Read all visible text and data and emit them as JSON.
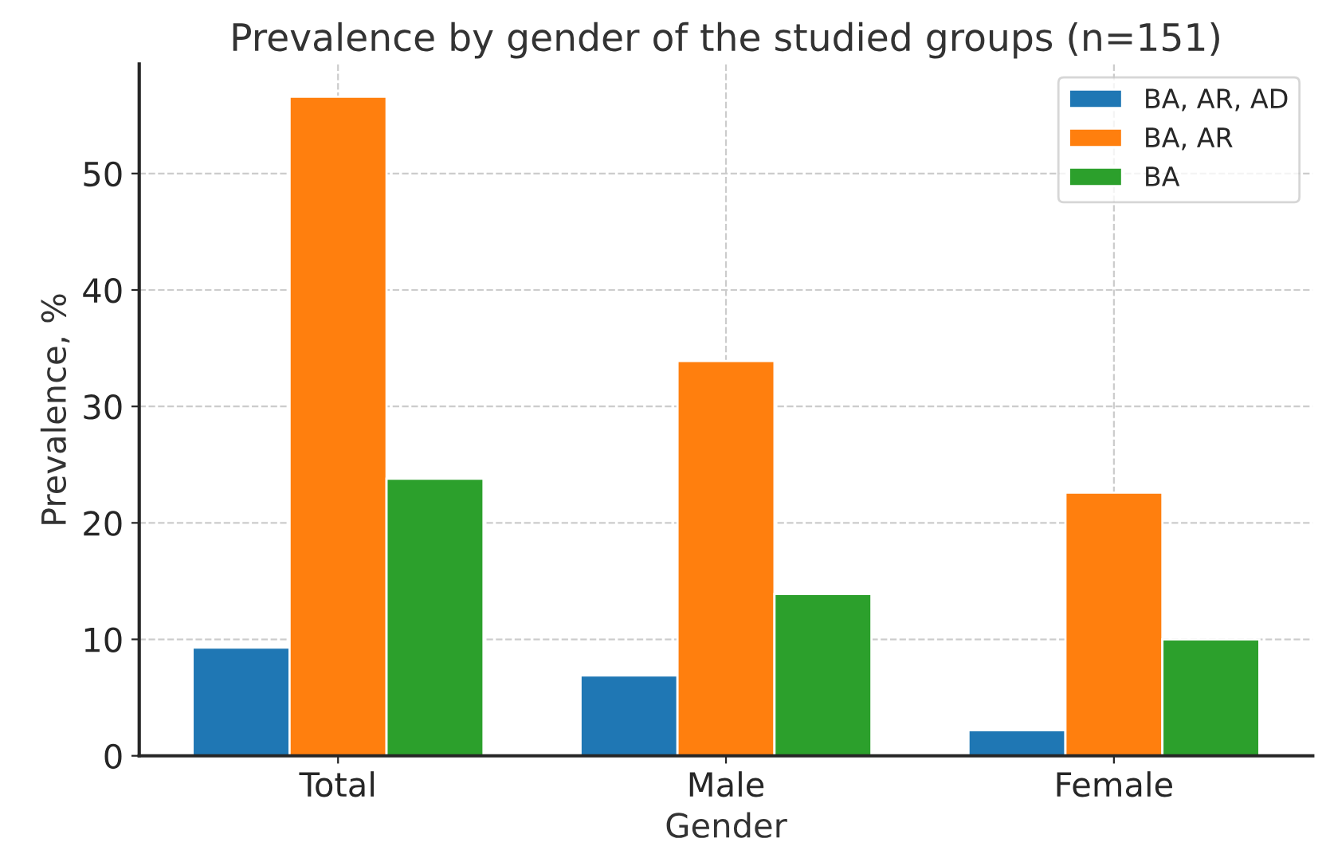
{
  "chart_data": {
    "type": "bar",
    "title": "Prevalence by gender of the studied groups (n=151)",
    "xlabel": "Gender",
    "ylabel": "Prevalence, %",
    "categories": [
      "Total",
      "Male",
      "Female"
    ],
    "series": [
      {
        "name": "BA, AR, AD",
        "color": "#1f77b4",
        "values": [
          9.3,
          6.9,
          2.2
        ]
      },
      {
        "name": "BA, AR",
        "color": "#ff7f0e",
        "values": [
          56.6,
          33.9,
          22.6
        ]
      },
      {
        "name": "BA",
        "color": "#2ca02c",
        "values": [
          23.8,
          13.9,
          10.0
        ]
      }
    ],
    "ylim": [
      0,
      59.4
    ],
    "yticks": [
      0,
      10,
      20,
      30,
      40,
      50
    ],
    "grid": true,
    "line_style": "dashed",
    "legend": "top right"
  }
}
